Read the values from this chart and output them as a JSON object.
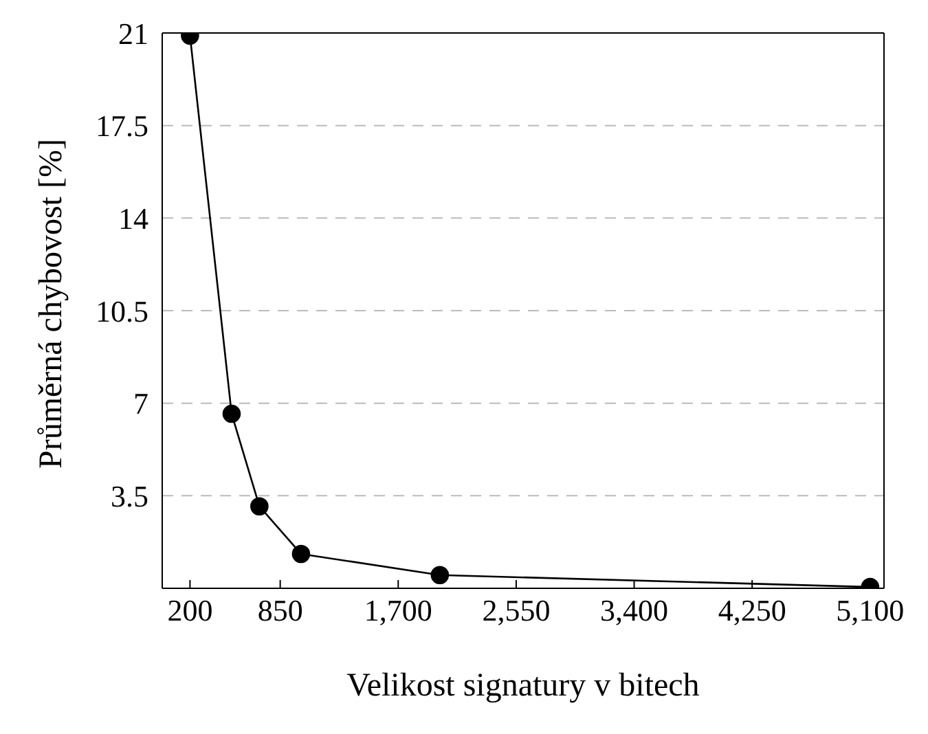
{
  "chart_data": {
    "type": "line",
    "xlabel": "Velikost signatury v bitech",
    "ylabel": "Průměrná chybovost [%]",
    "x": [
      200,
      500,
      700,
      1000,
      2000,
      5100
    ],
    "series": [
      {
        "color": "#000000",
        "values": [
          20.9,
          6.6,
          3.1,
          1.3,
          0.5,
          0.05
        ]
      }
    ],
    "xlim": [
      0,
      5200
    ],
    "xticks": [
      {
        "value": 200,
        "label": "200"
      },
      {
        "value": 850,
        "label": "850"
      },
      {
        "value": 1700,
        "label": "1,700"
      },
      {
        "value": 2550,
        "label": "2,550"
      },
      {
        "value": 3400,
        "label": "3,400"
      },
      {
        "value": 4250,
        "label": "4,250"
      },
      {
        "value": 5100,
        "label": "5,100"
      }
    ],
    "ylim": [
      0,
      21
    ],
    "yticks": [
      3.5,
      7,
      10.5,
      14,
      17.5,
      21
    ],
    "grid": "y",
    "marker": "circle",
    "line_style": "solid"
  }
}
